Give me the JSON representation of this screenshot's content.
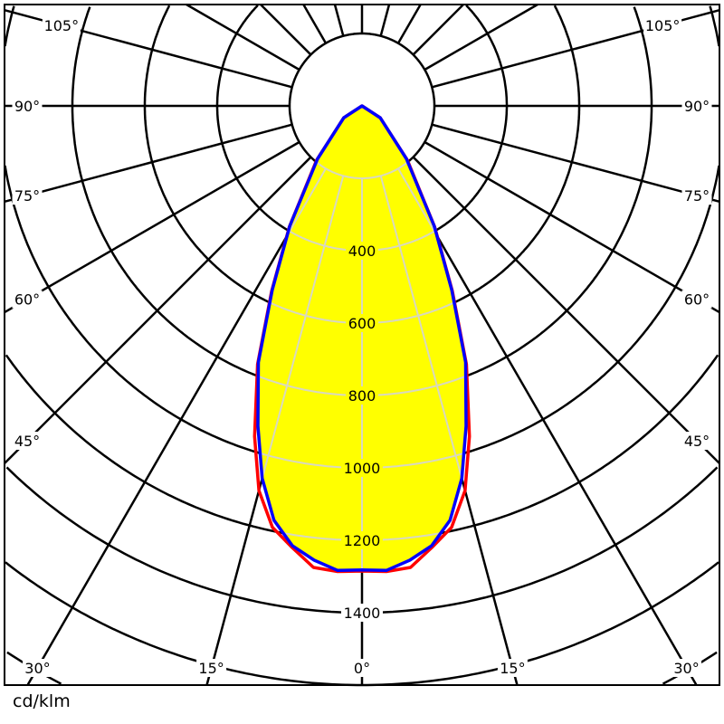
{
  "chart_data": {
    "type": "polar",
    "unit_label": "cd/klm",
    "radial_ticks": [
      200,
      400,
      600,
      800,
      1000,
      1200,
      1400,
      1600,
      1800,
      2000
    ],
    "radial_tick_labels": [
      "400",
      "600",
      "800",
      "1000",
      "1200",
      "1400"
    ],
    "angle_step_deg": 15,
    "angle_labels": [
      "105°",
      "90°",
      "75°",
      "60°",
      "45°",
      "30°",
      "15°",
      "0°"
    ],
    "angle_label_values": [
      105,
      90,
      75,
      60,
      45,
      30,
      15,
      0
    ],
    "fill_color": "#ffff00",
    "grid_color": "#000000",
    "inner_grid_color": "#d8d8c0",
    "series": [
      {
        "color": "#ff0000",
        "angles": [
          0,
          3,
          6,
          9,
          12,
          15,
          18,
          22,
          26,
          31,
          40,
          57,
          90
        ],
        "values": [
          1285,
          1288,
          1282,
          1235,
          1190,
          1100,
          960,
          770,
          570,
          390,
          195,
          60,
          0
        ]
      },
      {
        "color": "#0000ff",
        "angles": [
          0,
          3,
          6,
          9,
          12,
          15,
          18,
          22,
          26,
          31,
          40,
          57,
          90
        ],
        "values": [
          1282,
          1285,
          1262,
          1230,
          1170,
          1065,
          930,
          764,
          566,
          388,
          191,
          60,
          0
        ]
      }
    ]
  }
}
